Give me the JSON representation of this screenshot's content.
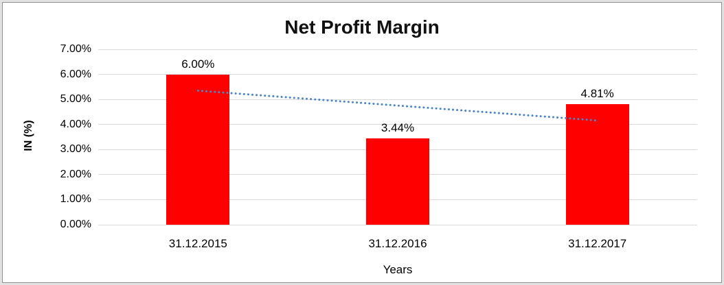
{
  "chart_data": {
    "type": "bar",
    "title": "Net Profit Margin",
    "xlabel": "Years",
    "ylabel": "IN (%)",
    "categories": [
      "31.12.2015",
      "31.12.2016",
      "31.12.2017"
    ],
    "values": [
      6.0,
      3.44,
      4.81
    ],
    "data_labels": [
      "6.00%",
      "3.44%",
      "4.81%"
    ],
    "ylim": [
      0,
      7
    ],
    "yticks": [
      {
        "value": 0,
        "label": "0.00%"
      },
      {
        "value": 1,
        "label": "1.00%"
      },
      {
        "value": 2,
        "label": "2.00%"
      },
      {
        "value": 3,
        "label": "3.00%"
      },
      {
        "value": 4,
        "label": "4.00%"
      },
      {
        "value": 5,
        "label": "5.00%"
      },
      {
        "value": 6,
        "label": "6.00%"
      },
      {
        "value": 7,
        "label": "7.00%"
      }
    ],
    "grid": true,
    "legend_position": "none",
    "bar_color": "#FF0000",
    "gridline_color": "#D9D9D9",
    "text_color": "#000000",
    "trendline": {
      "type": "linear",
      "style": "dotted",
      "color": "#4A86C8",
      "start_value": 5.35,
      "end_value": 4.16
    }
  }
}
